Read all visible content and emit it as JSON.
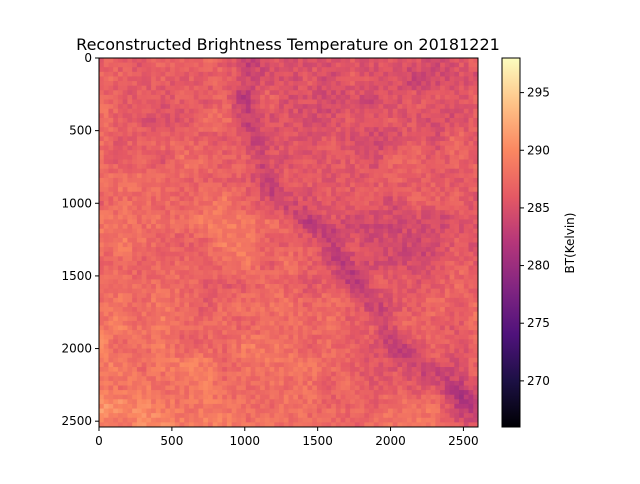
{
  "chart_data": {
    "type": "heatmap",
    "title": "Reconstructed Brightness Temperature on 20181221",
    "colorbar_label": "BT(Kelvin)",
    "colormap": "magma",
    "colormap_stops": [
      "#000004",
      "#1c1044",
      "#4f127b",
      "#812581",
      "#b5367a",
      "#e55964",
      "#fb8761",
      "#fec287",
      "#fcfdbf"
    ],
    "x_range": [
      0,
      2600
    ],
    "y_range": [
      0,
      2540
    ],
    "y_inverted": true,
    "x_ticks": [
      0,
      500,
      1000,
      1500,
      2000,
      2500
    ],
    "y_ticks": [
      0,
      500,
      1000,
      1500,
      2000,
      2500
    ],
    "colorbar_range": [
      266,
      298
    ],
    "colorbar_ticks": [
      270,
      275,
      280,
      285,
      290,
      295
    ],
    "value_range_shown": [
      281,
      291
    ],
    "grid": false
  }
}
